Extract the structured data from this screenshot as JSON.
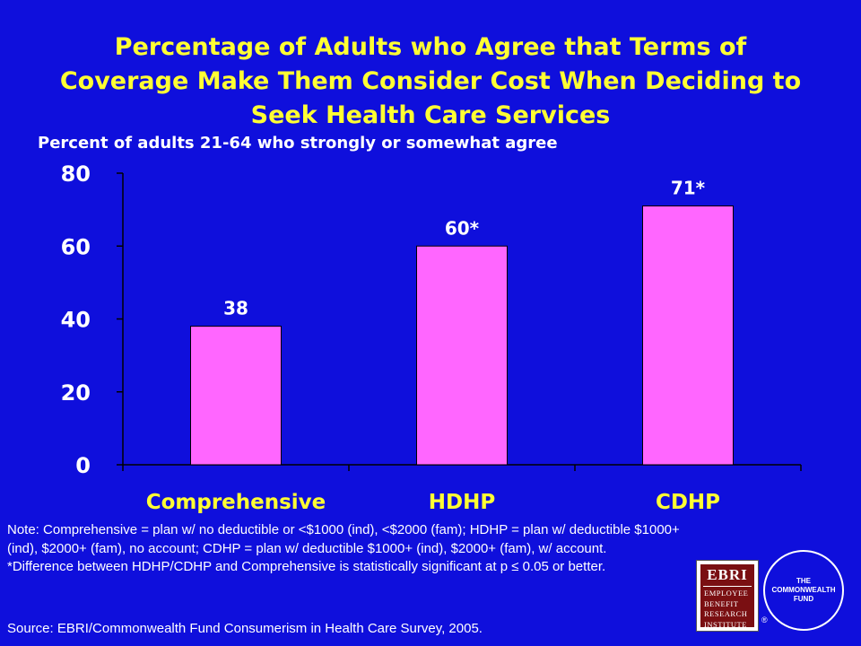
{
  "chart_data": {
    "type": "bar",
    "title": "Percentage of Adults who Agree that Terms of Coverage Make Them Consider Cost When Deciding to Seek Health Care Services",
    "subtitle": "Percent of adults 21-64 who strongly or somewhat agree",
    "categories": [
      "Comprehensive",
      "HDHP",
      "CDHP"
    ],
    "values": [
      38,
      60,
      71
    ],
    "data_labels": [
      "38",
      "60*",
      "71*"
    ],
    "yticks": [
      "0",
      "20",
      "40",
      "60",
      "80"
    ],
    "ylim": [
      0,
      80
    ],
    "grid": false,
    "bar_color": "#ff66ff"
  },
  "colors": {
    "background": "#0f0fdc",
    "title": "#ffff33",
    "text": "#ffffff",
    "axis": "#000000"
  },
  "note": {
    "line1": "Note: Comprehensive = plan w/ no deductible or <$1000 (ind), <$2000 (fam); HDHP = plan w/ deductible $1000+ (ind), $2000+ (fam), no account; CDHP = plan w/ deductible $1000+ (ind), $2000+ (fam), w/ account.",
    "line2": "*Difference between HDHP/CDHP and Comprehensive is statistically significant at p ≤ 0.05 or better."
  },
  "source": "Source: EBRI/Commonwealth Fund Consumerism in Health Care Survey, 2005.",
  "logos": {
    "ebri_top": "EBRI",
    "ebri_words": [
      "EMPLOYEE",
      "BENEFIT",
      "RESEARCH",
      "INSTITUTE"
    ],
    "ebri_reg": "®",
    "cwf": [
      "THE",
      "COMMONWEALTH",
      "FUND"
    ]
  }
}
